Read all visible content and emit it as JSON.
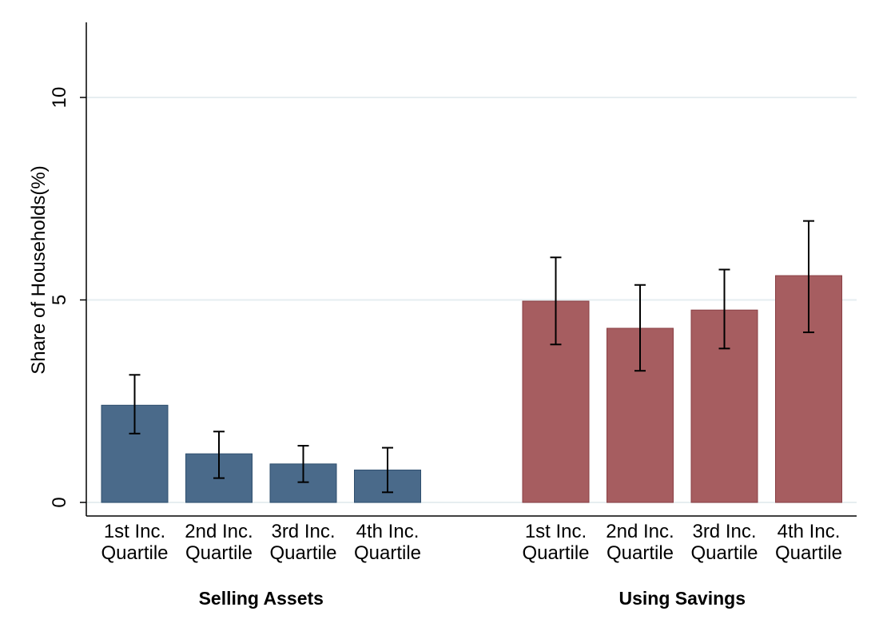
{
  "chart_data": {
    "type": "bar",
    "title": "",
    "ylabel": "Share of Households(%)",
    "ylim": [
      0,
      12
    ],
    "yticks": [
      0,
      5,
      10
    ],
    "grid": true,
    "groups": [
      {
        "name": "Selling Assets",
        "color": "#4a6a8a",
        "categories": [
          [
            "1st Inc.",
            "Quartile"
          ],
          [
            "2nd Inc.",
            "Quartile"
          ],
          [
            "3rd Inc.",
            "Quartile"
          ],
          [
            "4th Inc.",
            "Quartile"
          ]
        ],
        "values": [
          2.4,
          1.2,
          0.95,
          0.8
        ],
        "ci_low": [
          1.7,
          0.6,
          0.5,
          0.25
        ],
        "ci_high": [
          3.15,
          1.75,
          1.4,
          1.35
        ]
      },
      {
        "name": "Using Savings",
        "color": "#a65d60",
        "categories": [
          [
            "1st Inc.",
            "Quartile"
          ],
          [
            "2nd Inc.",
            "Quartile"
          ],
          [
            "3rd Inc.",
            "Quartile"
          ],
          [
            "4th Inc.",
            "Quartile"
          ]
        ],
        "values": [
          4.97,
          4.3,
          4.75,
          5.6
        ],
        "ci_low": [
          3.9,
          3.25,
          3.8,
          4.2
        ],
        "ci_high": [
          6.05,
          5.37,
          5.75,
          6.95
        ]
      }
    ]
  }
}
